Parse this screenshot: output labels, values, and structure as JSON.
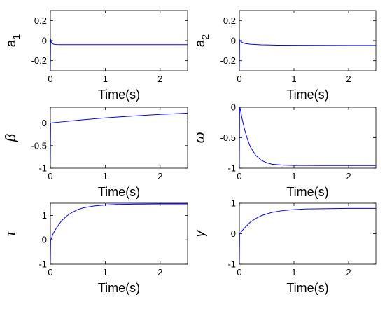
{
  "chart_data": [
    {
      "type": "line",
      "ylabel": "a",
      "ylabel_sub": "1",
      "xlabel": "Time(s)",
      "xlim": [
        0,
        2.5
      ],
      "ylim": [
        -0.3,
        0.3
      ],
      "xticks": [
        0,
        1,
        2
      ],
      "yticks": [
        0.2,
        0,
        -0.2
      ],
      "ytick_labels": [
        "0.2",
        "0",
        "-0.2"
      ],
      "color": "#0000ff",
      "series": [
        {
          "x": [
            0,
            0.005,
            0.01,
            0.02,
            0.04,
            0.06,
            0.08,
            0.12,
            0.2,
            0.5,
            1,
            1.5,
            2,
            2.5
          ],
          "y": [
            -0.3,
            0.02,
            0.0,
            -0.02,
            -0.03,
            -0.035,
            -0.038,
            -0.039,
            -0.04,
            -0.04,
            -0.04,
            -0.04,
            -0.04,
            -0.04
          ]
        }
      ]
    },
    {
      "type": "line",
      "ylabel": "a",
      "ylabel_sub": "2",
      "xlabel": "Time(s)",
      "xlim": [
        0,
        2.5
      ],
      "ylim": [
        -0.3,
        0.3
      ],
      "xticks": [
        0,
        1,
        2
      ],
      "yticks": [
        0.2,
        0,
        -0.2
      ],
      "ytick_labels": [
        "0.2",
        "0",
        "-0.2"
      ],
      "color": "#0000ff",
      "series": [
        {
          "x": [
            0,
            0.005,
            0.01,
            0.03,
            0.06,
            0.1,
            0.2,
            0.4,
            0.7,
            1,
            1.5,
            2,
            2.5
          ],
          "y": [
            -0.3,
            0.01,
            0.0,
            -0.01,
            -0.02,
            -0.028,
            -0.036,
            -0.042,
            -0.045,
            -0.046,
            -0.047,
            -0.048,
            -0.048
          ]
        }
      ]
    },
    {
      "type": "line",
      "ylabel": "β",
      "xlabel": "Time(s)",
      "xlim": [
        0,
        2.5
      ],
      "ylim": [
        -1,
        0.35
      ],
      "xticks": [
        0,
        1,
        2
      ],
      "yticks": [
        0,
        -0.5,
        -1
      ],
      "ytick_labels": [
        "0",
        "-0.5",
        "-1"
      ],
      "color": "#0000ff",
      "series": [
        {
          "x": [
            0,
            0.005,
            0.01,
            0.05,
            0.1,
            0.2,
            0.4,
            0.6,
            0.8,
            1,
            1.25,
            1.5,
            1.75,
            2,
            2.25,
            2.5
          ],
          "y": [
            -0.9,
            0.0,
            0.0,
            0.006,
            0.012,
            0.025,
            0.05,
            0.072,
            0.093,
            0.113,
            0.135,
            0.155,
            0.173,
            0.19,
            0.205,
            0.22
          ]
        }
      ]
    },
    {
      "type": "line",
      "ylabel": "ω",
      "xlabel": "Time(s)",
      "xlim": [
        0,
        2.5
      ],
      "ylim": [
        -1,
        0
      ],
      "xticks": [
        0,
        1,
        2
      ],
      "yticks": [
        0,
        -0.5,
        -1
      ],
      "ytick_labels": [
        "0",
        "-0.5",
        "-1"
      ],
      "color": "#0000ff",
      "series": [
        {
          "x": [
            0,
            0.005,
            0.01,
            0.05,
            0.1,
            0.15,
            0.2,
            0.3,
            0.4,
            0.5,
            0.6,
            0.8,
            1,
            1.2,
            1.5,
            2,
            2.5
          ],
          "y": [
            -0.95,
            0.0,
            0.0,
            -0.19,
            -0.38,
            -0.53,
            -0.65,
            -0.79,
            -0.87,
            -0.91,
            -0.935,
            -0.95,
            -0.955,
            -0.956,
            -0.957,
            -0.957,
            -0.957
          ]
        }
      ]
    },
    {
      "type": "line",
      "ylabel": "τ",
      "xlabel": "Time(s)",
      "xlim": [
        0,
        2.5
      ],
      "ylim": [
        -1,
        1.5
      ],
      "xticks": [
        0,
        1,
        2
      ],
      "yticks": [
        1,
        0,
        -1
      ],
      "ytick_labels": [
        "1",
        "0",
        "-1"
      ],
      "color": "#0000ff",
      "series": [
        {
          "x": [
            0,
            0.005,
            0.01,
            0.05,
            0.1,
            0.2,
            0.3,
            0.4,
            0.5,
            0.6,
            0.8,
            1,
            1.2,
            1.5,
            2,
            2.5
          ],
          "y": [
            -1.0,
            0.0,
            0.0,
            0.25,
            0.45,
            0.77,
            0.98,
            1.13,
            1.24,
            1.31,
            1.39,
            1.43,
            1.45,
            1.46,
            1.47,
            1.47
          ]
        }
      ]
    },
    {
      "type": "line",
      "ylabel": "γ",
      "xlabel": "Time(s)",
      "xlim": [
        0,
        2.5
      ],
      "ylim": [
        -1,
        1
      ],
      "xticks": [
        0,
        1,
        2
      ],
      "yticks": [
        1,
        0,
        -1
      ],
      "ytick_labels": [
        "1",
        "0",
        "-1"
      ],
      "color": "#0000ff",
      "series": [
        {
          "x": [
            0,
            0.005,
            0.01,
            0.05,
            0.1,
            0.2,
            0.3,
            0.4,
            0.5,
            0.6,
            0.8,
            1,
            1.2,
            1.5,
            2,
            2.5
          ],
          "y": [
            -0.95,
            0.0,
            0.0,
            0.1,
            0.2,
            0.38,
            0.5,
            0.59,
            0.65,
            0.7,
            0.76,
            0.79,
            0.81,
            0.82,
            0.83,
            0.83
          ]
        }
      ]
    }
  ]
}
